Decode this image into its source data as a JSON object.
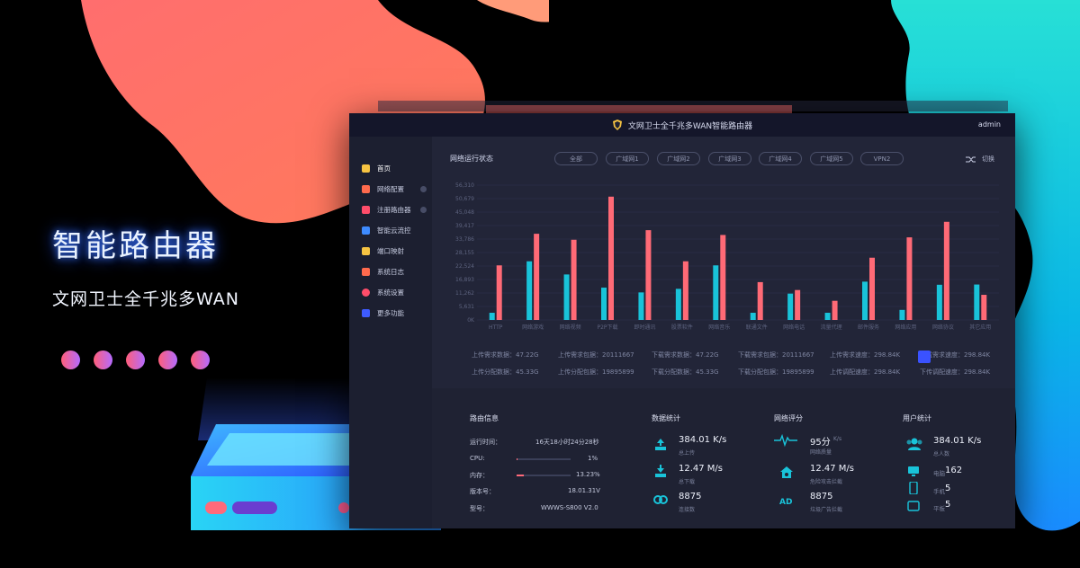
{
  "hero": {
    "title": "智能路由器",
    "subtitle": "文网卫士全千兆多WAN"
  },
  "window": {
    "title": "文网卫士全千兆多WAN智能路由器",
    "user": "admin"
  },
  "sidebar": {
    "items": [
      {
        "label": "首页",
        "color": "#f6c342",
        "active": true
      },
      {
        "label": "网络配置",
        "color": "#ff6a4d",
        "active": false
      },
      {
        "label": "注册路由器",
        "color": "#ff4d6a",
        "active": false
      },
      {
        "label": "智能云流控",
        "color": "#3e8bff",
        "active": false
      },
      {
        "label": "端口映射",
        "color": "#f6c342",
        "active": false
      },
      {
        "label": "系统日志",
        "color": "#ff6a4d",
        "active": false
      },
      {
        "label": "系统设置",
        "color": "#ff4d6a",
        "active": false
      },
      {
        "label": "更多功能",
        "color": "#3e5bff",
        "active": false
      }
    ]
  },
  "network_status": {
    "title": "网络运行状态",
    "tabs": [
      "全部",
      "广域网1",
      "广域网2",
      "广域网3",
      "广域网4",
      "广域网5",
      "VPN2"
    ],
    "switch_label": "切换"
  },
  "chart_data": {
    "type": "bar",
    "title": "网络运行状态",
    "xlabel": "",
    "ylabel": "",
    "yticks": [
      "0K",
      "5,631",
      "11,262",
      "16,893",
      "22,524",
      "28,155",
      "33,786",
      "39,417",
      "45,048",
      "50,679",
      "56,310"
    ],
    "ylim": [
      0,
      56310
    ],
    "categories": [
      "HTTP",
      "网络游戏",
      "网络视频",
      "P2P下载",
      "即时通讯",
      "股票软件",
      "网络音乐",
      "联通文件",
      "网络电话",
      "流量代理",
      "邮件服务",
      "网络应用",
      "网络协议",
      "其它应用"
    ],
    "series": [
      {
        "values": [
          3000,
          24500,
          19000,
          13500,
          11500,
          13000,
          22800,
          3000,
          11000,
          3000,
          16000,
          4200,
          14700,
          14800
        ],
        "color": "#19c3d9"
      },
      {
        "values": [
          22800,
          36000,
          33500,
          51500,
          37500,
          24500,
          35500,
          15800,
          12500,
          8000,
          26000,
          34500,
          41000,
          10500
        ],
        "color": "#ff6a76"
      }
    ]
  },
  "traffic_stats": {
    "row1": [
      "上传需求数据：47.22G",
      "上传需求包据：20111667",
      "下载需求数据：47.22G",
      "下载需求包据：20111667",
      "上传需求速度：298.84K",
      "下载需求速度：298.84K"
    ],
    "row2": [
      "上传分配数据：45.33G",
      "上传分配包据：19895899",
      "下载分配数据：45.33G",
      "下载分配包据：19895899",
      "上传调配速度：298.84K",
      "下传调配速度：298.84K"
    ]
  },
  "route_info": {
    "title": "路由信息",
    "rows": [
      {
        "label": "运行时间：",
        "value": "16天18小时24分28秒"
      },
      {
        "label": "CPU:",
        "value": "1%",
        "progress": 0.01
      },
      {
        "label": "内存：",
        "value": "13.23%",
        "progress": 0.1323
      },
      {
        "label": "版本号：",
        "value": "18.01.31V"
      },
      {
        "label": "型号：",
        "value": "WWWS-S800 V2.0"
      }
    ]
  },
  "data_stats": {
    "title": "数据统计",
    "items": [
      {
        "value": "384.01 K/s",
        "label": "总上传",
        "icon": "upload-icon"
      },
      {
        "value": "12.47 M/s",
        "label": "总下载",
        "icon": "download-icon"
      },
      {
        "value": "8875",
        "label": "连接数",
        "icon": "link-icon"
      }
    ]
  },
  "network_score": {
    "title": "网络评分",
    "items": [
      {
        "value": "95分",
        "unit": "K/s",
        "label": "网络质量",
        "icon": "pulse-icon"
      },
      {
        "value": "12.47 M/s",
        "label": "危险攻击拦截",
        "icon": "home-shield-icon"
      },
      {
        "value": "8875",
        "label": "垃圾广告拦截",
        "icon": "ad-icon",
        "icon_text": "AD"
      }
    ]
  },
  "user_stats": {
    "title": "用户统计",
    "items": [
      {
        "value": "384.01 K/s",
        "label": "总人数",
        "icon": "users-icon"
      },
      {
        "label": "电脑",
        "value": "162",
        "icon": "computer-icon"
      },
      {
        "label": "手机",
        "value": "5",
        "icon": "phone-icon"
      },
      {
        "label": "平板",
        "value": "5",
        "icon": "tablet-icon"
      }
    ]
  }
}
